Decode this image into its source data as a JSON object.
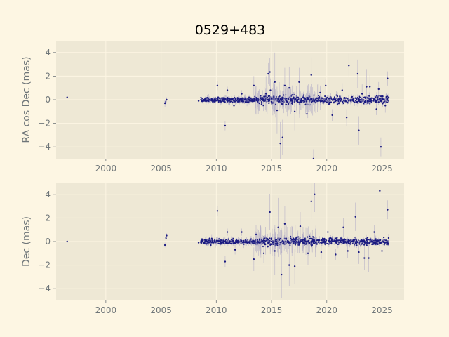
{
  "title": "0529+483",
  "colors": {
    "figure_bg": "#fdf6e3",
    "axes_bg": "#eee8d5",
    "grid": "#fdf6e3",
    "points": "#1a1a80",
    "errorbars": "#b9b3c8",
    "text": "#6f7679"
  },
  "chart_data": [
    {
      "type": "scatter",
      "ylabel": "RA cos Dec (mas)",
      "xlim": [
        1995.5,
        2027.0
      ],
      "ylim": [
        -5.0,
        5.0
      ],
      "xticks": [
        "2000",
        "2005",
        "2010",
        "2015",
        "2020",
        "2025"
      ],
      "yticks": [
        "4",
        "2",
        "0",
        "−2",
        "−4"
      ],
      "ytick_values": [
        4,
        2,
        0,
        -2,
        -4
      ],
      "xtick_values": [
        2000,
        2005,
        2010,
        2015,
        2020,
        2025
      ],
      "grid": true,
      "points": [
        [
          1996.5,
          0.2,
          0.1
        ],
        [
          2005.4,
          -0.2,
          0.2
        ],
        [
          2005.5,
          0.0,
          0.2
        ],
        [
          2005.35,
          -0.3,
          0.3
        ],
        [
          2008.4,
          -0.1,
          0.1
        ],
        [
          2009.1,
          -0.1,
          0.2
        ],
        [
          2009.4,
          0.0,
          0.3
        ],
        [
          2010.1,
          1.2,
          0.4
        ],
        [
          2010.8,
          -2.2,
          0.4
        ],
        [
          2011.0,
          0.8,
          0.3
        ],
        [
          2011.6,
          -0.5,
          0.4
        ],
        [
          2012.3,
          0.5,
          0.3
        ],
        [
          2013.4,
          1.2,
          0.8
        ],
        [
          2013.9,
          -0.3,
          0.5
        ],
        [
          2014.7,
          2.2,
          0.9
        ],
        [
          2014.85,
          2.35,
          1.2
        ],
        [
          2014.5,
          0.5,
          1.5
        ],
        [
          2014.9,
          0.8,
          1.0
        ],
        [
          2015.3,
          1.5,
          2.5
        ],
        [
          2015.5,
          -0.9,
          2.0
        ],
        [
          2015.8,
          -3.7,
          1.8
        ],
        [
          2016.0,
          -3.2,
          1.5
        ],
        [
          2016.2,
          1.2,
          1.5
        ],
        [
          2016.6,
          1.0,
          1.8
        ],
        [
          2017.1,
          -1.0,
          1.6
        ],
        [
          2017.5,
          1.5,
          1.2
        ],
        [
          2018.2,
          -1.2,
          0.8
        ],
        [
          2018.6,
          2.1,
          1.5
        ],
        [
          2018.8,
          -5.0,
          0.8
        ],
        [
          2019.4,
          0.6,
          0.6
        ],
        [
          2019.9,
          1.2,
          0.6
        ],
        [
          2020.5,
          -1.3,
          0.5
        ],
        [
          2021.4,
          0.8,
          0.6
        ],
        [
          2021.8,
          -1.5,
          0.7
        ],
        [
          2022.0,
          2.9,
          1.0
        ],
        [
          2022.8,
          2.2,
          1.2
        ],
        [
          2022.9,
          -2.6,
          1.2
        ],
        [
          2023.2,
          0.5,
          0.8
        ],
        [
          2023.6,
          1.1,
          1.5
        ],
        [
          2023.9,
          1.1,
          1.0
        ],
        [
          2024.5,
          -0.8,
          0.5
        ],
        [
          2024.7,
          0.9,
          0.6
        ],
        [
          2024.9,
          -4.0,
          0.8
        ],
        [
          2025.3,
          -0.5,
          0.6
        ],
        [
          2025.5,
          1.8,
          0.6
        ],
        [
          2025.6,
          0.2,
          0.3
        ]
      ]
    },
    {
      "type": "scatter",
      "ylabel": "Dec (mas)",
      "xlim": [
        1995.5,
        2027.0
      ],
      "ylim": [
        -5.0,
        5.0
      ],
      "xticks": [
        "2000",
        "2005",
        "2010",
        "2015",
        "2020",
        "2025"
      ],
      "yticks": [
        "4",
        "2",
        "0",
        "−2",
        "−4"
      ],
      "ytick_values": [
        4,
        2,
        0,
        -2,
        -4
      ],
      "xtick_values": [
        2000,
        2005,
        2010,
        2015,
        2020,
        2025
      ],
      "grid": true,
      "points": [
        [
          1996.5,
          0.0,
          0.1
        ],
        [
          2005.35,
          -0.3,
          0.2
        ],
        [
          2005.45,
          0.3,
          0.2
        ],
        [
          2005.5,
          0.5,
          0.2
        ],
        [
          2008.4,
          -0.1,
          0.1
        ],
        [
          2009.1,
          -0.2,
          0.2
        ],
        [
          2009.5,
          -0.3,
          0.2
        ],
        [
          2010.1,
          2.6,
          0.4
        ],
        [
          2010.8,
          -1.7,
          0.5
        ],
        [
          2011.0,
          0.8,
          0.3
        ],
        [
          2011.7,
          -0.7,
          0.4
        ],
        [
          2012.3,
          0.8,
          0.3
        ],
        [
          2013.4,
          -1.5,
          1.0
        ],
        [
          2013.6,
          0.6,
          0.8
        ],
        [
          2014.3,
          -1.0,
          0.8
        ],
        [
          2014.85,
          2.5,
          1.5
        ],
        [
          2015.3,
          -0.8,
          2.0
        ],
        [
          2015.6,
          1.2,
          2.5
        ],
        [
          2015.9,
          -2.8,
          2.0
        ],
        [
          2016.2,
          1.5,
          1.5
        ],
        [
          2016.6,
          -2.0,
          1.8
        ],
        [
          2017.1,
          -2.1,
          1.5
        ],
        [
          2017.6,
          1.3,
          1.2
        ],
        [
          2018.3,
          -1.0,
          1.0
        ],
        [
          2018.6,
          3.4,
          1.5
        ],
        [
          2018.9,
          4.0,
          1.5
        ],
        [
          2019.5,
          -0.9,
          0.6
        ],
        [
          2020.1,
          0.8,
          0.5
        ],
        [
          2020.8,
          -1.1,
          0.5
        ],
        [
          2021.5,
          1.2,
          0.8
        ],
        [
          2021.9,
          -0.8,
          0.6
        ],
        [
          2022.6,
          2.1,
          1.2
        ],
        [
          2022.9,
          -0.9,
          1.0
        ],
        [
          2023.4,
          -1.4,
          1.0
        ],
        [
          2023.8,
          -1.4,
          1.2
        ],
        [
          2024.3,
          0.8,
          0.6
        ],
        [
          2024.8,
          4.3,
          1.0
        ],
        [
          2025.0,
          -0.8,
          0.6
        ],
        [
          2025.5,
          2.7,
          0.8
        ],
        [
          2025.6,
          0.3,
          0.3
        ]
      ]
    }
  ]
}
